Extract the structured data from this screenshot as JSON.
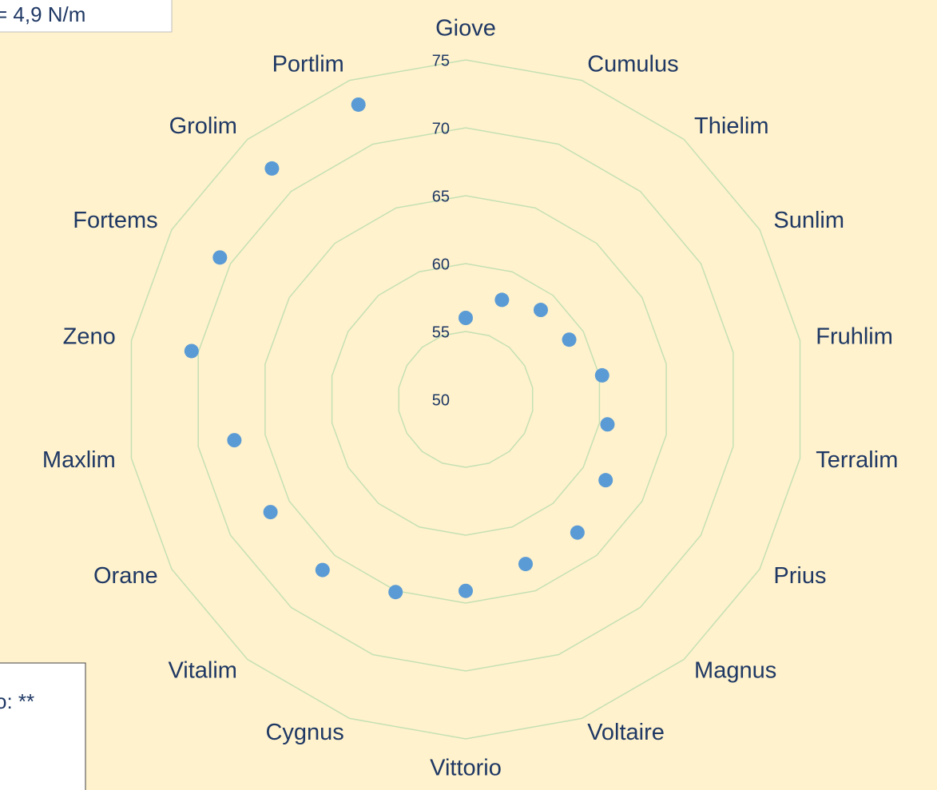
{
  "chart_data": {
    "type": "radar",
    "categories": [
      "Giove",
      "Cumulus",
      "Thielim",
      "Sunlim",
      "Fruhlim",
      "Terralim",
      "Prius",
      "Magnus",
      "Voltaire",
      "Vittorio",
      "Cygnus",
      "Vitalim",
      "Orane",
      "Maxlim",
      "Zeno",
      "Fortems",
      "Grolim",
      "Portlim"
    ],
    "values": [
      56.0,
      57.8,
      58.6,
      58.8,
      60.2,
      60.6,
      61.9,
      62.8,
      62.9,
      64.1,
      65.1,
      66.4,
      66.6,
      67.3,
      70.5,
      70.9,
      72.2,
      73.1
    ],
    "color": "#5b9bd5",
    "ylim": [
      50,
      75
    ],
    "yticks": [
      50,
      55,
      60,
      65,
      70,
      75
    ],
    "grid": true,
    "annotations": [
      "= 4,9 N/m",
      "o: **"
    ]
  }
}
